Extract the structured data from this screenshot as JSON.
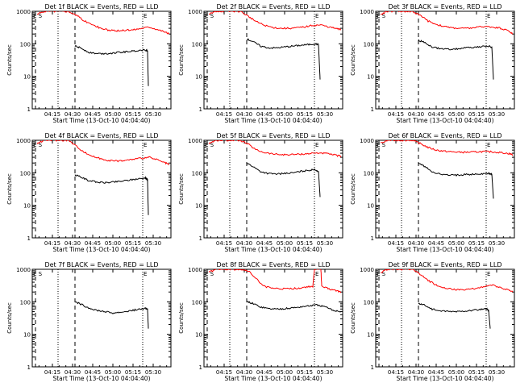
{
  "chart_data": {
    "type": "line",
    "xlabel": "Start Time (13-Oct-10 04:04:40)",
    "ylabel": "Counts/sec",
    "xlim": [
      4.0,
      5.72
    ],
    "ylim": [
      1,
      1000
    ],
    "y_scale": "log",
    "x_ticks": [
      {
        "value": 4.25,
        "label": "04:15"
      },
      {
        "value": 4.5,
        "label": "04:30"
      },
      {
        "value": 4.75,
        "label": "04:45"
      },
      {
        "value": 5.0,
        "label": "05:00"
      },
      {
        "value": 5.25,
        "label": "05:15"
      },
      {
        "value": 5.5,
        "label": "05:30"
      }
    ],
    "y_ticks": [
      {
        "value": 1,
        "label": "1"
      },
      {
        "value": 10,
        "label": "10"
      },
      {
        "value": 100,
        "label": "100"
      },
      {
        "value": 1000,
        "label": "1000"
      }
    ],
    "panels": [
      {
        "title": "Det 1f BLACK = Events, RED = LLD",
        "marker_left": "E S",
        "marker_right": "E",
        "dotted_lines": [
          4.32,
          5.37
        ],
        "dashed_lines": [
          4.04,
          4.53
        ],
        "series": [
          {
            "name": "Events",
            "color": "#000000",
            "x": [
              4.53,
              4.6,
              4.7,
              4.8,
              4.9,
              5.0,
              5.1,
              5.2,
              5.3,
              5.4,
              5.43,
              5.44
            ],
            "y": [
              85,
              75,
              55,
              50,
              50,
              52,
              55,
              58,
              62,
              65,
              60,
              5
            ]
          },
          {
            "name": "LLD",
            "color": "#ff0000",
            "x": [
              4.06,
              4.15,
              4.25,
              4.35,
              4.45,
              4.55,
              4.65,
              4.75,
              4.85,
              4.95,
              5.05,
              5.15,
              5.25,
              5.35,
              5.45,
              5.55,
              5.65,
              5.7
            ],
            "y": [
              800,
              1000,
              1000,
              1000,
              1000,
              750,
              500,
              380,
              300,
              260,
              250,
              260,
              270,
              300,
              330,
              280,
              230,
              200
            ]
          }
        ]
      },
      {
        "title": "Det 2f BLACK = Events, RED = LLD",
        "marker_left": "E S",
        "marker_right": "E",
        "dotted_lines": [
          4.32,
          5.37
        ],
        "dashed_lines": [
          4.04,
          4.53
        ],
        "series": [
          {
            "name": "Events",
            "color": "#000000",
            "x": [
              4.53,
              4.6,
              4.7,
              4.8,
              4.9,
              5.0,
              5.1,
              5.2,
              5.3,
              5.38,
              5.42,
              5.44
            ],
            "y": [
              140,
              120,
              85,
              75,
              75,
              80,
              85,
              90,
              95,
              100,
              95,
              8
            ]
          },
          {
            "name": "LLD",
            "color": "#ff0000",
            "x": [
              4.06,
              4.15,
              4.25,
              4.35,
              4.45,
              4.55,
              4.65,
              4.75,
              4.85,
              4.95,
              5.05,
              5.15,
              5.25,
              5.35,
              5.45,
              5.55,
              5.65,
              5.7
            ],
            "y": [
              800,
              1000,
              1000,
              1000,
              1000,
              700,
              480,
              370,
              320,
              300,
              300,
              310,
              330,
              370,
              380,
              330,
              290,
              270
            ]
          }
        ]
      },
      {
        "title": "Det 3f BLACK = Events, RED = LLD",
        "marker_left": "E S",
        "marker_right": "E",
        "dotted_lines": [
          4.32,
          5.37
        ],
        "dashed_lines": [
          4.04,
          4.53
        ],
        "series": [
          {
            "name": "Events",
            "color": "#000000",
            "x": [
              4.53,
              4.6,
              4.7,
              4.8,
              4.9,
              5.0,
              5.1,
              5.2,
              5.3,
              5.4,
              5.44,
              5.46
            ],
            "y": [
              130,
              110,
              80,
              70,
              68,
              70,
              75,
              78,
              80,
              85,
              80,
              8
            ]
          },
          {
            "name": "LLD",
            "color": "#ff0000",
            "x": [
              4.06,
              4.15,
              4.25,
              4.35,
              4.45,
              4.55,
              4.65,
              4.75,
              4.85,
              4.95,
              5.05,
              5.15,
              5.25,
              5.35,
              5.45,
              5.55,
              5.65,
              5.7
            ],
            "y": [
              800,
              1000,
              1000,
              1000,
              1000,
              750,
              500,
              400,
              340,
              310,
              300,
              300,
              320,
              340,
              330,
              300,
              250,
              200
            ]
          }
        ]
      },
      {
        "title": "Det 4f BLACK = Events, RED = LLD",
        "marker_left": "E S",
        "marker_right": "E",
        "dotted_lines": [
          4.32,
          5.37
        ],
        "dashed_lines": [
          4.04,
          4.53
        ],
        "series": [
          {
            "name": "Events",
            "color": "#000000",
            "x": [
              4.53,
              4.6,
              4.7,
              4.8,
              4.9,
              5.0,
              5.1,
              5.2,
              5.3,
              5.4,
              5.43,
              5.44
            ],
            "y": [
              85,
              75,
              58,
              52,
              50,
              52,
              55,
              60,
              65,
              70,
              62,
              5
            ]
          },
          {
            "name": "LLD",
            "color": "#ff0000",
            "x": [
              4.06,
              4.15,
              4.25,
              4.35,
              4.45,
              4.55,
              4.65,
              4.75,
              4.85,
              4.95,
              5.05,
              5.15,
              5.25,
              5.35,
              5.45,
              5.55,
              5.65,
              5.7
            ],
            "y": [
              800,
              1000,
              1000,
              1000,
              1000,
              650,
              420,
              320,
              270,
              240,
              230,
              240,
              260,
              280,
              300,
              250,
              200,
              180
            ]
          }
        ]
      },
      {
        "title": "Det 5f BLACK = Events, RED = LLD",
        "marker_left": "E S",
        "marker_right": "E",
        "dotted_lines": [
          4.32,
          5.37
        ],
        "dashed_lines": [
          4.04,
          4.53
        ],
        "series": [
          {
            "name": "Events",
            "color": "#000000",
            "x": [
              4.53,
              4.6,
              4.7,
              4.8,
              4.9,
              5.0,
              5.1,
              5.2,
              5.3,
              5.38,
              5.42,
              5.44
            ],
            "y": [
              200,
              160,
              110,
              95,
              92,
              95,
              100,
              110,
              120,
              125,
              110,
              18
            ]
          },
          {
            "name": "LLD",
            "color": "#ff0000",
            "x": [
              4.06,
              4.15,
              4.25,
              4.35,
              4.45,
              4.55,
              4.65,
              4.75,
              4.85,
              4.95,
              5.05,
              5.15,
              5.25,
              5.35,
              5.45,
              5.55,
              5.65,
              5.7
            ],
            "y": [
              800,
              1000,
              1000,
              1000,
              1000,
              750,
              500,
              420,
              380,
              360,
              360,
              370,
              380,
              400,
              410,
              380,
              340,
              320
            ]
          }
        ]
      },
      {
        "title": "Det 6f BLACK = Events, RED = LLD",
        "marker_left": "E S",
        "marker_right": "E",
        "dotted_lines": [
          4.32,
          5.37
        ],
        "dashed_lines": [
          4.04,
          4.53
        ],
        "series": [
          {
            "name": "Events",
            "color": "#000000",
            "x": [
              4.53,
              4.6,
              4.7,
              4.8,
              4.9,
              5.0,
              5.1,
              5.2,
              5.3,
              5.4,
              5.44,
              5.46
            ],
            "y": [
              200,
              160,
              110,
              90,
              85,
              85,
              88,
              90,
              92,
              95,
              90,
              16
            ]
          },
          {
            "name": "LLD",
            "color": "#ff0000",
            "x": [
              4.06,
              4.15,
              4.25,
              4.35,
              4.45,
              4.55,
              4.65,
              4.75,
              4.85,
              4.95,
              5.05,
              5.15,
              5.25,
              5.35,
              5.45,
              5.55,
              5.65,
              5.7
            ],
            "y": [
              800,
              1000,
              1000,
              1000,
              1000,
              800,
              600,
              500,
              460,
              440,
              430,
              430,
              440,
              450,
              440,
              420,
              390,
              360
            ]
          }
        ]
      },
      {
        "title": "Det 7f BLACK = Events, RED = LLD",
        "marker_left": "E S",
        "marker_right": "E",
        "dotted_lines": [
          4.32,
          5.37
        ],
        "dashed_lines": [
          4.04,
          4.53
        ],
        "series": [
          {
            "name": "Events",
            "color": "#000000",
            "x": [
              4.53,
              4.6,
              4.7,
              4.8,
              4.9,
              5.0,
              5.1,
              5.2,
              5.3,
              5.4,
              5.43,
              5.44
            ],
            "y": [
              100,
              85,
              65,
              55,
              50,
              45,
              48,
              52,
              58,
              62,
              60,
              15
            ]
          }
        ]
      },
      {
        "title": "Det 8f BLACK = Events, RED = LLD",
        "marker_left": "E S",
        "marker_right": "E",
        "dotted_lines": [
          4.32,
          5.37
        ],
        "dashed_lines": [
          4.04,
          4.53
        ],
        "series": [
          {
            "name": "Events",
            "color": "#000000",
            "x": [
              4.53,
              4.6,
              4.7,
              4.8,
              4.9,
              5.0,
              5.1,
              5.2,
              5.3,
              5.4,
              5.5,
              5.6,
              5.7
            ],
            "y": [
              100,
              90,
              70,
              62,
              60,
              62,
              65,
              70,
              75,
              80,
              70,
              55,
              50
            ]
          },
          {
            "name": "LLD",
            "color": "#ff0000",
            "x": [
              4.06,
              4.15,
              4.25,
              4.35,
              4.45,
              4.55,
              4.65,
              4.75,
              4.85,
              4.95,
              5.05,
              5.15,
              5.25,
              5.35,
              5.37,
              5.38,
              5.45,
              5.46,
              5.55,
              5.65,
              5.7
            ],
            "y": [
              800,
              1000,
              1000,
              1000,
              1000,
              900,
              500,
              300,
              260,
              250,
              250,
              260,
              280,
              300,
              1000,
              1000,
              1000,
              300,
              250,
              220,
              200
            ]
          }
        ]
      },
      {
        "title": "Det 9f BLACK = Events, RED = LLD",
        "marker_left": "E S",
        "marker_right": "E",
        "dotted_lines": [
          4.32,
          5.37
        ],
        "dashed_lines": [
          4.04,
          4.53
        ],
        "series": [
          {
            "name": "Events",
            "color": "#000000",
            "x": [
              4.53,
              4.6,
              4.7,
              4.8,
              4.9,
              5.0,
              5.1,
              5.2,
              5.3,
              5.38,
              5.4,
              5.42
            ],
            "y": [
              90,
              80,
              60,
              52,
              50,
              50,
              52,
              55,
              58,
              60,
              55,
              15
            ]
          },
          {
            "name": "LLD",
            "color": "#ff0000",
            "x": [
              4.06,
              4.15,
              4.25,
              4.35,
              4.45,
              4.55,
              4.65,
              4.75,
              4.85,
              4.95,
              5.05,
              5.15,
              5.25,
              5.35,
              5.45,
              5.55,
              5.65,
              5.7
            ],
            "y": [
              800,
              1000,
              1000,
              1000,
              1000,
              700,
              450,
              330,
              270,
              240,
              230,
              240,
              260,
              300,
              320,
              270,
              230,
              200
            ]
          }
        ]
      }
    ]
  }
}
